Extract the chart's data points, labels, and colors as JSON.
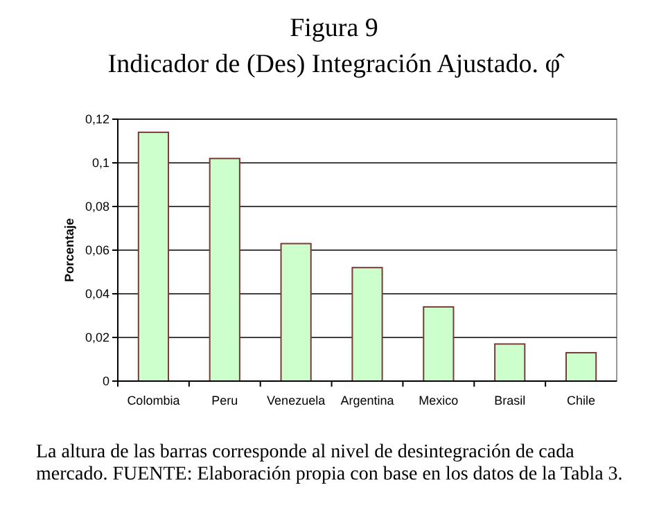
{
  "chart_data": {
    "type": "bar",
    "title": "Figura 9",
    "subtitle": "Indicador de (Des) Integración Ajustado. φ̂",
    "ylabel": "Porcentaje",
    "categories": [
      "Colombia",
      "Peru",
      "Venezuela",
      "Argentina",
      "Mexico",
      "Brasil",
      "Chile"
    ],
    "values": [
      0.114,
      0.102,
      0.063,
      0.052,
      0.034,
      0.017,
      0.013
    ],
    "color": "#ccffcc",
    "ylim": [
      0,
      0.12
    ],
    "yticks": [
      0,
      {
        "value": 0.02,
        "label": "0,02"
      },
      {
        "value": 0.04,
        "label": "0,04"
      },
      {
        "value": 0.06,
        "label": "0,06"
      },
      {
        "value": 0.08,
        "label": "0,08"
      },
      {
        "value": 0.1,
        "label": "0,1"
      },
      {
        "value": 0.12,
        "label": "0,12"
      }
    ],
    "grid": "y",
    "annotations": [
      "La altura de las barras corresponde al nivel de desintegración de cada mercado. FUENTE: Elaboración propia con base en los datos de la Tabla 3."
    ]
  }
}
